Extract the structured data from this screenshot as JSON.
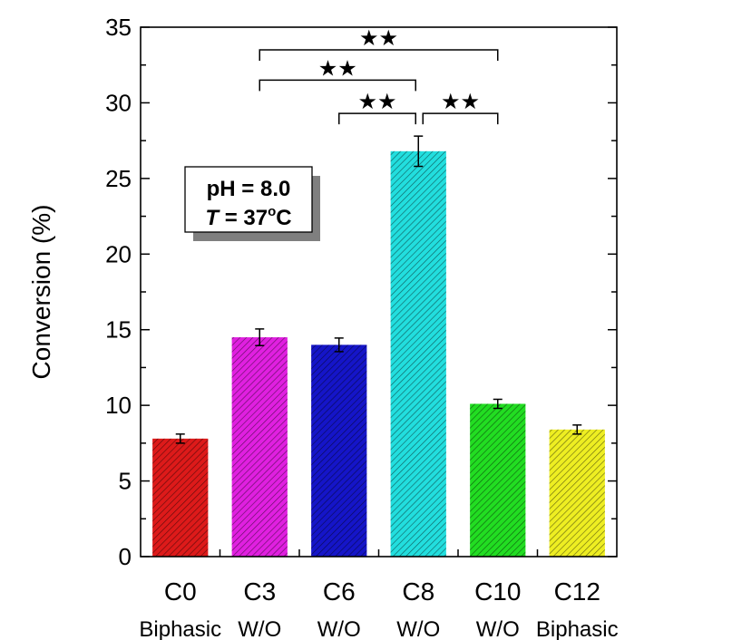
{
  "chart_data": {
    "type": "bar",
    "ylabel": "Conversion (%)",
    "ylim": [
      0,
      35
    ],
    "yticks": [
      0,
      5,
      10,
      15,
      20,
      25,
      30,
      35
    ],
    "categories": [
      "C0",
      "C3",
      "C6",
      "C8",
      "C10",
      "C12"
    ],
    "sublabels": [
      "Biphasic",
      "W/O",
      "W/O",
      "W/O",
      "W/O",
      "Biphasic"
    ],
    "values": [
      7.8,
      14.5,
      14.0,
      26.8,
      10.1,
      8.4
    ],
    "errors": [
      0.3,
      0.55,
      0.45,
      1.0,
      0.3,
      0.3
    ],
    "colors": [
      "#dd1a1a",
      "#e020e0",
      "#1515c8",
      "#22dede",
      "#22dd22",
      "#eeee22"
    ],
    "grid": false,
    "conditions": {
      "ph": "pH = 8.0",
      "t_var": "T",
      "t_eq": " = 37",
      "t_sup": "o",
      "t_unit": "C"
    },
    "significance": [
      {
        "from": "C3",
        "to": "C10",
        "label": "★★",
        "y": 33.5
      },
      {
        "from": "C3",
        "to": "C8",
        "label": "★★",
        "y": 31.5
      },
      {
        "from": "C6",
        "to": "C8",
        "label": "★★",
        "y": 29.3
      },
      {
        "from": "C8",
        "to": "C10",
        "label": "★★",
        "y": 29.3
      }
    ]
  }
}
